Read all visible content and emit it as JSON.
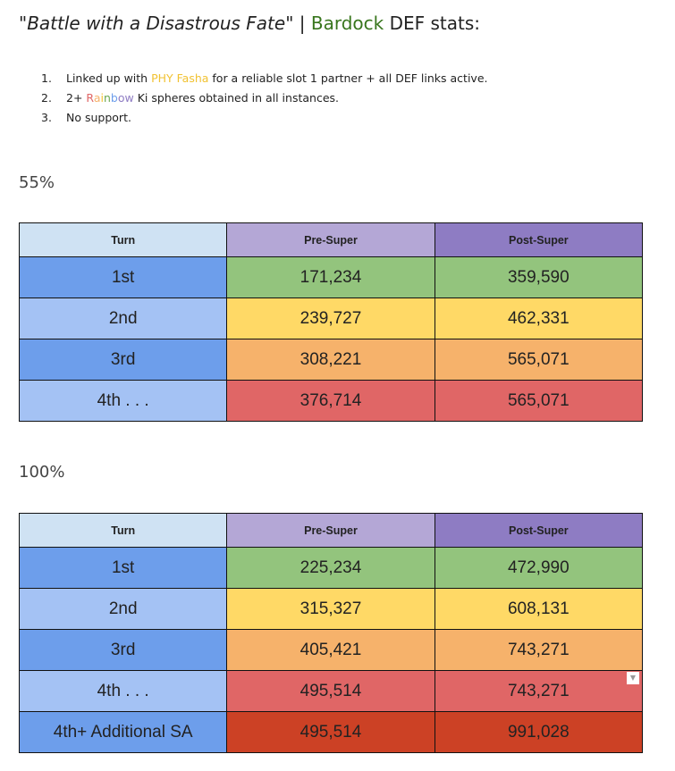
{
  "title": {
    "quote": "\"Battle with a Disastrous Fate\"",
    "sep": " | ",
    "name": "Bardock",
    "suffix": " DEF stats:"
  },
  "notes": [
    {
      "num": "1.",
      "pre": "Linked up with ",
      "hl": "PHY Fasha",
      "post": " for a reliable slot 1 partner + all DEF links active."
    },
    {
      "num": "2.",
      "pre": "2+ ",
      "rainbow": "Rainbow",
      "post": " Ki spheres obtained in all instances."
    },
    {
      "num": "3.",
      "pre": "No support."
    }
  ],
  "rainbow_colors": [
    "#e06666",
    "#f6b26b",
    "#f1c232",
    "#6aa84f",
    "#6d9eeb",
    "#8e7cc3",
    "#8e7cc3"
  ],
  "colors": {
    "accent_green": "#38761d",
    "fasha": "#f1c232"
  },
  "headers": [
    "Turn",
    "Pre-Super",
    "Post-Super"
  ],
  "tables": [
    {
      "label": "55%",
      "rows": [
        {
          "turn": "1st",
          "pre": "171,234",
          "post": "359,590"
        },
        {
          "turn": "2nd",
          "pre": "239,727",
          "post": "462,331"
        },
        {
          "turn": "3rd",
          "pre": "308,221",
          "post": "565,071"
        },
        {
          "turn": "4th . . .",
          "pre": "376,714",
          "post": "565,071"
        }
      ]
    },
    {
      "label": "100%",
      "rows": [
        {
          "turn": "1st",
          "pre": "225,234",
          "post": "472,990"
        },
        {
          "turn": "2nd",
          "pre": "315,327",
          "post": "608,131"
        },
        {
          "turn": "3rd",
          "pre": "405,421",
          "post": "743,271"
        },
        {
          "turn": "4th . . .",
          "pre": "495,514",
          "post": "743,271"
        },
        {
          "turn": "4th+ Additional SA",
          "pre": "495,514",
          "post": "991,028"
        }
      ]
    }
  ]
}
